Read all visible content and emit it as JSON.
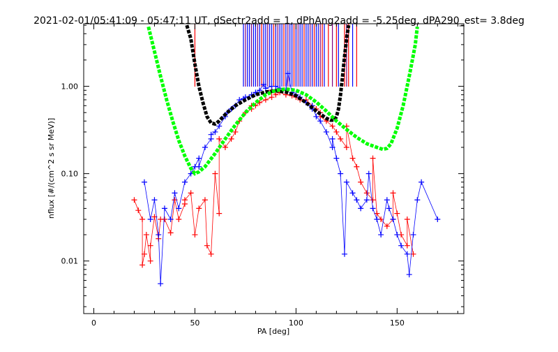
{
  "chart_data": {
    "type": "scatter",
    "title": "2021-02-01/05:41:09 - 05:47:11 UT, dSectr2add = 1, dPhAng2add = -5.25deg, dPA290_est=   3.8deg",
    "xlabel": "PA [deg]",
    "ylabel": "nflux [#/(cm^2 s sr MeV)]",
    "xlim": [
      -5,
      183
    ],
    "ylim": [
      0.0025,
      5.2
    ],
    "yscale": "log",
    "grid": false,
    "legend": "none",
    "x_ticks": [
      0,
      50,
      100,
      150
    ],
    "x_tick_labels": [
      "0",
      "50",
      "100",
      "150"
    ],
    "y_ticks": [
      0.01,
      0.1,
      1.0
    ],
    "y_tick_labels": [
      "0.01",
      "0.10",
      "1.00"
    ],
    "colors": {
      "series_red": "#ff0000",
      "series_blue": "#0000ff",
      "fit_black": "#000000",
      "fit_green": "#00ff00",
      "markers_purple": "#800080"
    },
    "series": [
      {
        "color": "red",
        "x": [
          20,
          22,
          24,
          25,
          26,
          28,
          30,
          32,
          35,
          38,
          40,
          42,
          45,
          48,
          50,
          52,
          55,
          58,
          60,
          62,
          65,
          68,
          70,
          72,
          75,
          78,
          80,
          82,
          85,
          88,
          90,
          92,
          95,
          98,
          100,
          102,
          105,
          108,
          110,
          112,
          115,
          118,
          120,
          122,
          125,
          128,
          130,
          132,
          135,
          138,
          140,
          142,
          145,
          148,
          150,
          152,
          155,
          158,
          24,
          28,
          33,
          45,
          56,
          62,
          78,
          88,
          105,
          112,
          125,
          138,
          148,
          155
        ],
        "y": [
          0.05,
          0.038,
          0.03,
          0.012,
          0.02,
          0.01,
          0.032,
          0.018,
          0.03,
          0.021,
          0.05,
          0.03,
          0.045,
          0.06,
          0.02,
          0.04,
          0.05,
          0.012,
          0.1,
          0.035,
          0.2,
          0.25,
          0.3,
          0.4,
          0.5,
          0.55,
          0.6,
          0.65,
          0.7,
          0.75,
          0.8,
          0.85,
          0.8,
          0.78,
          0.75,
          0.7,
          0.65,
          0.6,
          0.55,
          0.5,
          0.4,
          0.35,
          0.3,
          0.25,
          0.2,
          0.15,
          0.12,
          0.08,
          0.06,
          0.05,
          0.035,
          0.03,
          0.025,
          0.03,
          0.035,
          0.02,
          0.015,
          0.012,
          0.009,
          0.015,
          0.03,
          0.05,
          0.015,
          0.25,
          0.6,
          0.9,
          0.7,
          0.45,
          0.35,
          0.15,
          0.06,
          0.03
        ]
      },
      {
        "color": "blue",
        "x": [
          25,
          28,
          30,
          32,
          35,
          38,
          40,
          42,
          45,
          48,
          50,
          52,
          55,
          58,
          60,
          62,
          65,
          68,
          70,
          72,
          75,
          78,
          80,
          82,
          85,
          88,
          90,
          92,
          95,
          98,
          100,
          102,
          105,
          108,
          110,
          112,
          115,
          118,
          120,
          122,
          125,
          128,
          130,
          132,
          135,
          138,
          140,
          142,
          145,
          148,
          150,
          152,
          155,
          158,
          160,
          162,
          170,
          33,
          52,
          58,
          66,
          74,
          84,
          96,
          108,
          118,
          124,
          136,
          146,
          156
        ],
        "y": [
          0.08,
          0.03,
          0.05,
          0.02,
          0.04,
          0.03,
          0.06,
          0.04,
          0.08,
          0.1,
          0.12,
          0.15,
          0.2,
          0.25,
          0.3,
          0.35,
          0.45,
          0.55,
          0.6,
          0.7,
          0.75,
          0.8,
          0.85,
          0.9,
          0.95,
          1.0,
          1.0,
          0.95,
          0.9,
          0.85,
          0.8,
          0.75,
          0.65,
          0.55,
          0.45,
          0.4,
          0.3,
          0.2,
          0.15,
          0.1,
          0.08,
          0.06,
          0.05,
          0.04,
          0.05,
          0.04,
          0.03,
          0.02,
          0.05,
          0.03,
          0.02,
          0.015,
          0.012,
          0.02,
          0.05,
          0.08,
          0.03,
          0.0055,
          0.12,
          0.28,
          0.5,
          0.72,
          1.05,
          1.4,
          0.6,
          0.25,
          0.012,
          0.1,
          0.04,
          0.007
        ]
      }
    ],
    "fits": [
      {
        "color": "black",
        "x": [
          46,
          48,
          50,
          52,
          54,
          56,
          58,
          60,
          62,
          64,
          66,
          70,
          75,
          80,
          85,
          90,
          95,
          100,
          105,
          110,
          115,
          117,
          119,
          120,
          121,
          122,
          123,
          124,
          125,
          126
        ],
        "y": [
          5.0,
          3.5,
          1.8,
          1.0,
          0.65,
          0.45,
          0.38,
          0.37,
          0.4,
          0.45,
          0.5,
          0.6,
          0.7,
          0.8,
          0.86,
          0.89,
          0.86,
          0.78,
          0.65,
          0.52,
          0.43,
          0.41,
          0.41,
          0.45,
          0.55,
          0.8,
          1.3,
          2.2,
          3.5,
          5.0
        ]
      },
      {
        "color": "green",
        "x": [
          27,
          30,
          33,
          36,
          39,
          42,
          45,
          48,
          50,
          52,
          55,
          60,
          65,
          70,
          75,
          80,
          85,
          90,
          95,
          100,
          105,
          110,
          115,
          120,
          125,
          130,
          135,
          140,
          143,
          145,
          147,
          150,
          153,
          156,
          159,
          160
        ],
        "y": [
          4.8,
          2.5,
          1.3,
          0.7,
          0.4,
          0.24,
          0.16,
          0.115,
          0.1,
          0.105,
          0.12,
          0.17,
          0.25,
          0.36,
          0.5,
          0.65,
          0.8,
          0.9,
          0.93,
          0.9,
          0.8,
          0.66,
          0.52,
          0.4,
          0.32,
          0.26,
          0.22,
          0.2,
          0.19,
          0.195,
          0.22,
          0.33,
          0.6,
          1.3,
          3.0,
          4.8
        ]
      }
    ],
    "markers": [
      {
        "x": 50,
        "color": "red"
      },
      {
        "x": 74,
        "color": "blue"
      },
      {
        "x": 75,
        "color": "purple"
      },
      {
        "x": 76,
        "color": "blue"
      },
      {
        "x": 77,
        "color": "blue"
      },
      {
        "x": 78,
        "color": "purple"
      },
      {
        "x": 79,
        "color": "blue"
      },
      {
        "x": 80,
        "color": "blue"
      },
      {
        "x": 81,
        "color": "purple"
      },
      {
        "x": 82,
        "color": "blue"
      },
      {
        "x": 83,
        "color": "red"
      },
      {
        "x": 84,
        "color": "blue"
      },
      {
        "x": 85,
        "color": "blue"
      },
      {
        "x": 86,
        "color": "purple"
      },
      {
        "x": 87,
        "color": "blue"
      },
      {
        "x": 88,
        "color": "blue"
      },
      {
        "x": 89,
        "color": "red"
      },
      {
        "x": 90,
        "color": "blue"
      },
      {
        "x": 91,
        "color": "purple"
      },
      {
        "x": 92,
        "color": "blue"
      },
      {
        "x": 93,
        "color": "blue"
      },
      {
        "x": 94,
        "color": "red"
      },
      {
        "x": 95,
        "color": "blue"
      },
      {
        "x": 96,
        "color": "purple"
      },
      {
        "x": 97,
        "color": "blue"
      },
      {
        "x": 98,
        "color": "blue"
      },
      {
        "x": 99,
        "color": "red"
      },
      {
        "x": 100,
        "color": "blue"
      },
      {
        "x": 101,
        "color": "purple"
      },
      {
        "x": 102,
        "color": "blue"
      },
      {
        "x": 103,
        "color": "blue"
      },
      {
        "x": 104,
        "color": "red"
      },
      {
        "x": 105,
        "color": "blue"
      },
      {
        "x": 106,
        "color": "blue"
      },
      {
        "x": 107,
        "color": "purple"
      },
      {
        "x": 108,
        "color": "blue"
      },
      {
        "x": 109,
        "color": "red"
      },
      {
        "x": 110,
        "color": "blue"
      },
      {
        "x": 111,
        "color": "blue"
      },
      {
        "x": 112,
        "color": "purple"
      },
      {
        "x": 113,
        "color": "red"
      },
      {
        "x": 114,
        "color": "blue"
      },
      {
        "x": 116,
        "color": "red"
      },
      {
        "x": 118,
        "color": "purple"
      },
      {
        "x": 120,
        "color": "red"
      },
      {
        "x": 121,
        "color": "blue"
      },
      {
        "x": 124,
        "color": "red"
      },
      {
        "x": 125,
        "color": "purple"
      },
      {
        "x": 126,
        "color": "red"
      },
      {
        "x": 128,
        "color": "blue"
      },
      {
        "x": 130,
        "color": "red"
      }
    ]
  }
}
